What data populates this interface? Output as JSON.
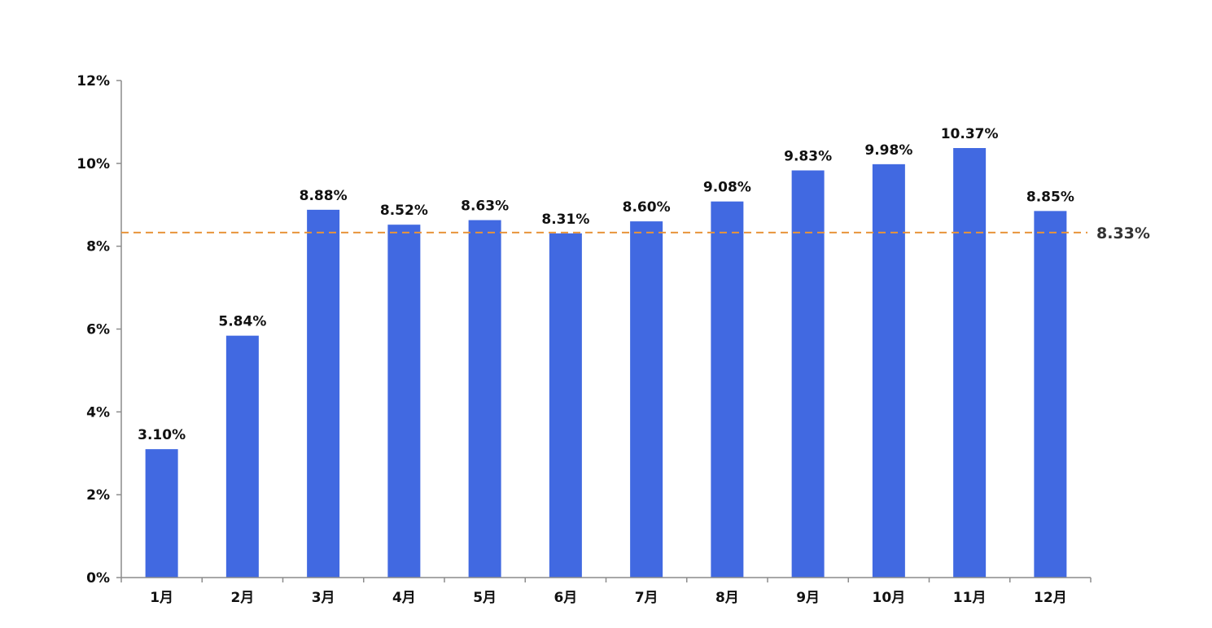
{
  "chart_data": {
    "type": "bar",
    "title": "",
    "xlabel": "",
    "ylabel": "",
    "categories": [
      "1月",
      "2月",
      "3月",
      "4月",
      "5月",
      "6月",
      "7月",
      "8月",
      "9月",
      "10月",
      "11月",
      "12月"
    ],
    "values": [
      3.1,
      5.84,
      8.88,
      8.52,
      8.63,
      8.31,
      8.6,
      9.08,
      9.83,
      9.98,
      10.37,
      8.85
    ],
    "data_labels": [
      "3.10%",
      "5.84%",
      "8.88%",
      "8.52%",
      "8.63%",
      "8.31%",
      "8.60%",
      "9.08%",
      "9.83%",
      "9.98%",
      "10.37%",
      "8.85%"
    ],
    "ylim": [
      0,
      12
    ],
    "yticks": [
      0,
      2,
      4,
      6,
      8,
      10,
      12
    ],
    "ytick_labels": [
      "0%",
      "2%",
      "4%",
      "6%",
      "8%",
      "10%",
      "12%"
    ],
    "grid": false,
    "legend": "none",
    "reference_line": {
      "value": 8.33,
      "label": "8.33%",
      "style": "dashed"
    },
    "colors": {
      "bar": "#4169E1",
      "reference_line": "#E8943A",
      "axis": "#8C8C8C",
      "text": "#111111",
      "reference_label": "#333333"
    }
  }
}
